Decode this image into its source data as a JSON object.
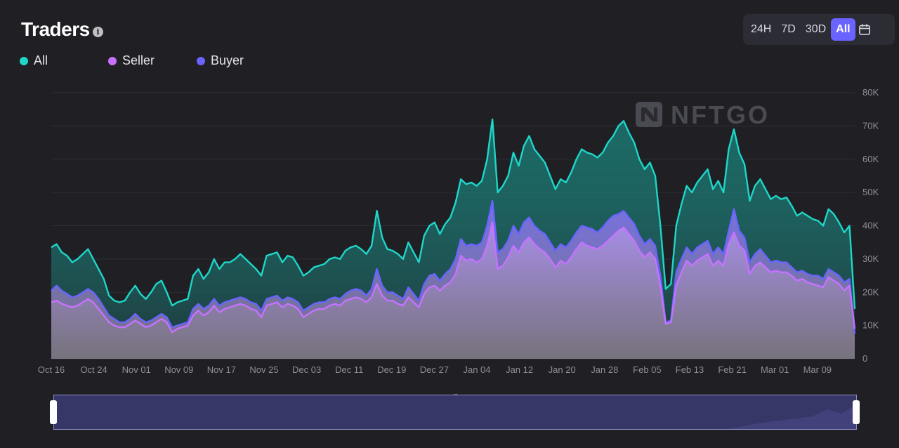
{
  "header": {
    "title": "Traders",
    "info_icon": "info-icon",
    "range_buttons": [
      "24H",
      "7D",
      "30D",
      "All"
    ],
    "active_range": "All",
    "calendar_icon": "calendar-icon"
  },
  "watermark": "NFTGO",
  "colors": {
    "background": "#1f1f24",
    "all": "#1fd6c8",
    "seller": "#c772ff",
    "buyer": "#6a63ff",
    "accent": "#6a63ff"
  },
  "chart_data": {
    "type": "area",
    "ylim": [
      0,
      80000
    ],
    "y_ticks": [
      "0",
      "10K",
      "20K",
      "30K",
      "40K",
      "50K",
      "60K",
      "70K",
      "80K"
    ],
    "x_ticks": [
      "Oct 16",
      "Oct 24",
      "Nov 01",
      "Nov 09",
      "Nov 17",
      "Nov 25",
      "Dec 03",
      "Dec 11",
      "Dec 19",
      "Dec 27",
      "Jan 04",
      "Jan 12",
      "Jan 20",
      "Jan 28",
      "Feb 05",
      "Feb 13",
      "Feb 21",
      "Mar 01",
      "Mar 09"
    ],
    "legend": "top-left",
    "grid": true,
    "x_day_index_note_removed": true,
    "series": [
      {
        "name": "All",
        "values": [
          33500,
          34500,
          32000,
          31000,
          29000,
          30000,
          31500,
          33000,
          30000,
          27000,
          24000,
          19000,
          17500,
          17000,
          17500,
          20000,
          22000,
          19500,
          18000,
          20000,
          22500,
          23500,
          20000,
          16000,
          17000,
          17500,
          18000,
          25000,
          27000,
          24000,
          26000,
          30000,
          27000,
          29000,
          29000,
          30000,
          31500,
          30000,
          28500,
          27000,
          25000,
          31000,
          31500,
          32000,
          29000,
          31000,
          30500,
          28000,
          25000,
          26000,
          27500,
          28000,
          28500,
          30000,
          30500,
          30000,
          32500,
          33500,
          34000,
          33000,
          31500,
          34000,
          44500,
          36500,
          33000,
          32500,
          31500,
          30000,
          35000,
          32000,
          29000,
          37000,
          40000,
          41000,
          37500,
          40500,
          42500,
          47000,
          54000,
          52500,
          53000,
          52000,
          53500,
          60000,
          72000,
          50000,
          52000,
          55000,
          62000,
          58000,
          64000,
          67000,
          63000,
          61000,
          59000,
          55000,
          51000,
          54000,
          53000,
          56000,
          60000,
          63000,
          62000,
          61500,
          60500,
          62000,
          65000,
          67000,
          70000,
          71500,
          68000,
          65000,
          60000,
          57000,
          59000,
          55000,
          40000,
          21000,
          22500,
          40000,
          46500,
          52000,
          50000,
          53000,
          55000,
          57000,
          51000,
          53500,
          50000,
          63000,
          69000,
          62000,
          58500,
          47500,
          52000,
          54000,
          51000,
          48000,
          49000,
          48000,
          48500,
          46000,
          43000,
          44000,
          43000,
          42000,
          41500,
          40000,
          45000,
          43500,
          41000,
          38000,
          40000,
          15000
        ]
      },
      {
        "name": "Seller",
        "values": [
          17000,
          17500,
          16500,
          16000,
          15500,
          16000,
          17000,
          18000,
          17000,
          15000,
          13000,
          11000,
          10000,
          9500,
          9500,
          10500,
          11500,
          10500,
          9500,
          10000,
          11000,
          12000,
          11000,
          8000,
          9000,
          9500,
          10000,
          13000,
          14500,
          13000,
          14000,
          16000,
          14000,
          15000,
          15500,
          16000,
          16500,
          16000,
          15000,
          14500,
          12500,
          16000,
          16500,
          17000,
          15500,
          16500,
          16000,
          15000,
          12500,
          13500,
          14500,
          15000,
          15000,
          16000,
          16500,
          16000,
          17500,
          18000,
          18500,
          18000,
          17000,
          18500,
          22500,
          19000,
          17500,
          17500,
          16500,
          16000,
          18500,
          17000,
          15500,
          19500,
          21500,
          22000,
          20500,
          22000,
          23000,
          25500,
          31000,
          29500,
          30000,
          29000,
          30000,
          34000,
          41000,
          27000,
          28000,
          30500,
          34000,
          32000,
          35000,
          36500,
          34500,
          33000,
          32000,
          30000,
          27500,
          29500,
          28500,
          30500,
          33000,
          35000,
          34000,
          33500,
          33000,
          34000,
          35500,
          37000,
          38500,
          39500,
          37500,
          35500,
          32500,
          30500,
          32000,
          30000,
          22000,
          10500,
          11000,
          22000,
          26000,
          29500,
          28000,
          29500,
          30500,
          31500,
          28000,
          29500,
          28000,
          34500,
          38000,
          34000,
          32500,
          25500,
          28000,
          29000,
          27500,
          26000,
          26500,
          26000,
          26000,
          25000,
          23500,
          24000,
          23000,
          22500,
          22000,
          21500,
          24500,
          23500,
          22500,
          20500,
          22000,
          9000
        ]
      },
      {
        "name": "Buyer",
        "values": [
          20500,
          22000,
          20500,
          19500,
          18500,
          19000,
          20000,
          21000,
          20000,
          18000,
          15500,
          13000,
          12000,
          11000,
          11000,
          12000,
          13500,
          12000,
          11000,
          11500,
          12500,
          13500,
          12500,
          9500,
          10000,
          10500,
          11000,
          15000,
          16500,
          15000,
          16000,
          18000,
          16000,
          17000,
          17500,
          18000,
          18500,
          18000,
          17000,
          16500,
          14500,
          18000,
          18500,
          19000,
          17500,
          18500,
          18000,
          17000,
          14500,
          15500,
          16500,
          17000,
          17000,
          18000,
          18500,
          18000,
          19500,
          20500,
          21000,
          20500,
          19000,
          21000,
          27000,
          22000,
          20000,
          20000,
          19000,
          18000,
          21500,
          19500,
          17500,
          22500,
          25000,
          25500,
          23500,
          25500,
          27000,
          30000,
          36000,
          34000,
          34500,
          34000,
          35000,
          40000,
          47500,
          32000,
          33000,
          35500,
          40000,
          37500,
          41000,
          42500,
          40000,
          38500,
          37500,
          35000,
          32500,
          34500,
          33500,
          35500,
          38000,
          40000,
          39500,
          39000,
          38000,
          39500,
          41500,
          43000,
          43500,
          44500,
          42500,
          40500,
          37000,
          34500,
          36000,
          34000,
          25000,
          11000,
          11500,
          26000,
          30000,
          33500,
          31500,
          33500,
          34500,
          35500,
          31500,
          33500,
          31500,
          38500,
          45000,
          38500,
          36500,
          29000,
          31500,
          33000,
          31000,
          29000,
          29500,
          29000,
          29000,
          27500,
          26000,
          26500,
          25500,
          25000,
          25000,
          24000,
          27000,
          26000,
          25000,
          23000,
          24000,
          7500
        ]
      }
    ]
  }
}
